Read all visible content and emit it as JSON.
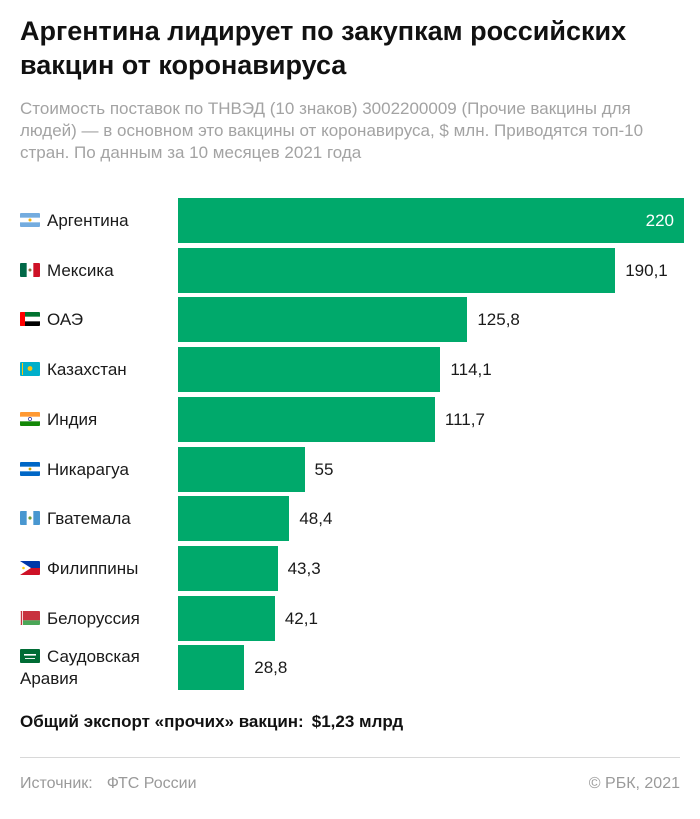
{
  "header": {
    "title": "Аргентина лидирует по закупкам российских вакцин от коронавируса",
    "subtitle": "Стоимость поставок по ТНВЭД (10 знаков) 3002200009 (Прочие вакцины для людей) — в основном это вакцины от коронавируса, $ млн. Приводятся топ-10 стран. По данным за 10 месяцев 2021 года"
  },
  "chart_data": {
    "type": "bar",
    "orientation": "horizontal",
    "title": "Аргентина лидирует по закупкам российских вакцин от коронавируса",
    "xlabel": "",
    "ylabel": "",
    "xlim": [
      0,
      220
    ],
    "grid": false,
    "bar_color": "#00a96b",
    "categories": [
      "Аргентина",
      "Мексика",
      "ОАЭ",
      "Казахстан",
      "Индия",
      "Никарагуа",
      "Гватемала",
      "Филиппины",
      "Белоруссия",
      "Саудовская Аравия"
    ],
    "values": [
      220,
      190.1,
      125.8,
      114.1,
      111.7,
      55,
      48.4,
      43.3,
      42.1,
      28.8
    ],
    "value_labels": [
      "220",
      "190,1",
      "125,8",
      "114,1",
      "111,7",
      "55",
      "48,4",
      "43,3",
      "42,1",
      "28,8"
    ],
    "flags": [
      "flag-argentina-icon",
      "flag-mexico-icon",
      "flag-uae-icon",
      "flag-kazakhstan-icon",
      "flag-india-icon",
      "flag-nicaragua-icon",
      "flag-guatemala-icon",
      "flag-philippines-icon",
      "flag-belarus-icon",
      "flag-saudi-arabia-icon"
    ]
  },
  "summary": {
    "label": "Общий экспорт «прочих» вакцин:",
    "value": "$1,23 млрд"
  },
  "footer": {
    "source_label": "Источник:",
    "source_value": "ФТС России",
    "copyright": "© РБК, 2021"
  }
}
